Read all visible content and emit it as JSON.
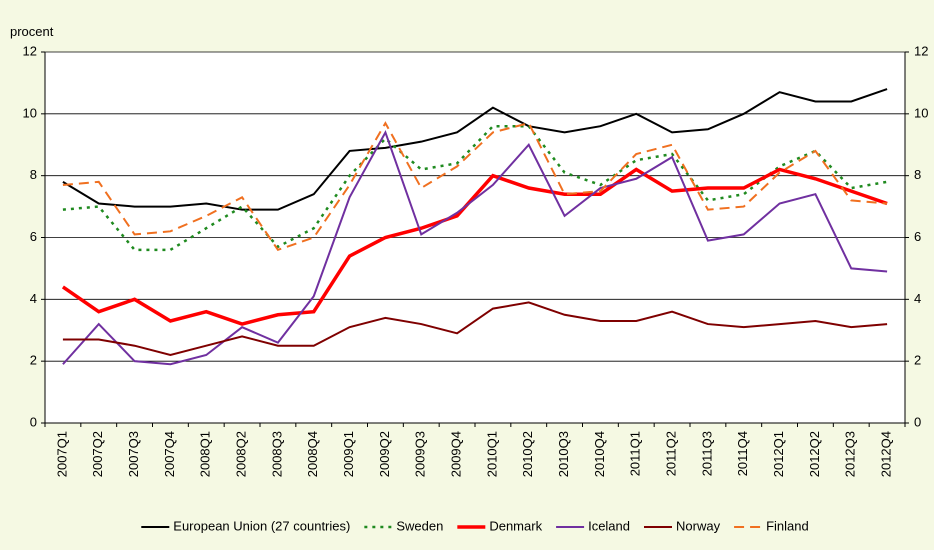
{
  "chart_data": {
    "type": "line",
    "y_label": "procent",
    "categories": [
      "2007Q1",
      "2007Q2",
      "2007Q3",
      "2007Q4",
      "2008Q1",
      "2008Q2",
      "2008Q3",
      "2008Q4",
      "2009Q1",
      "2009Q2",
      "2009Q3",
      "2009Q4",
      "2010Q1",
      "2010Q2",
      "2010Q3",
      "2010Q4",
      "2011Q1",
      "2011Q2",
      "2011Q3",
      "2011Q4",
      "2012Q1",
      "2012Q2",
      "2012Q3",
      "2012Q4"
    ],
    "ylim": [
      0,
      12
    ],
    "yticks": [
      0,
      2,
      4,
      6,
      8,
      10,
      12
    ],
    "y2lim": [
      0,
      12
    ],
    "y2ticks": [
      0,
      2,
      4,
      6,
      8,
      10,
      12
    ],
    "grid": true,
    "series": [
      {
        "name": "European Union (27 countries)",
        "color": "#000000",
        "dash": "solid",
        "width": 2,
        "values": [
          7.8,
          7.1,
          7.0,
          7.0,
          7.1,
          6.9,
          6.9,
          7.4,
          8.8,
          8.9,
          9.1,
          9.4,
          10.2,
          9.6,
          9.4,
          9.6,
          10.0,
          9.4,
          9.5,
          10.0,
          10.7,
          10.4,
          10.4,
          10.8
        ]
      },
      {
        "name": "Sweden",
        "color": "#1f8a1f",
        "dash": "dotted",
        "width": 2.5,
        "values": [
          6.9,
          7.0,
          5.6,
          5.6,
          6.3,
          7.0,
          5.7,
          6.3,
          8.0,
          9.2,
          8.2,
          8.4,
          9.6,
          9.6,
          8.1,
          7.7,
          8.5,
          8.7,
          7.2,
          7.4,
          8.3,
          8.8,
          7.6,
          7.8
        ]
      },
      {
        "name": "Denmark",
        "color": "#ff0000",
        "dash": "solid",
        "width": 3.5,
        "values": [
          4.4,
          3.6,
          4.0,
          3.3,
          3.6,
          3.2,
          3.5,
          3.6,
          5.4,
          6.0,
          6.3,
          6.7,
          8.0,
          7.6,
          7.4,
          7.4,
          8.2,
          7.5,
          7.6,
          7.6,
          8.2,
          7.9,
          7.5,
          7.1
        ]
      },
      {
        "name": "Iceland",
        "color": "#7030a0",
        "dash": "solid",
        "width": 2,
        "values": [
          1.9,
          3.2,
          2.0,
          1.9,
          2.2,
          3.1,
          2.6,
          4.1,
          7.3,
          9.4,
          6.1,
          6.8,
          7.7,
          9.0,
          6.7,
          7.6,
          7.9,
          8.6,
          5.9,
          6.1,
          7.1,
          7.4,
          5.0,
          4.9
        ]
      },
      {
        "name": "Norway",
        "color": "#7f0000",
        "dash": "solid",
        "width": 2,
        "values": [
          2.7,
          2.7,
          2.5,
          2.2,
          2.5,
          2.8,
          2.5,
          2.5,
          3.1,
          3.4,
          3.2,
          2.9,
          3.7,
          3.9,
          3.5,
          3.3,
          3.3,
          3.6,
          3.2,
          3.1,
          3.2,
          3.3,
          3.1,
          3.2
        ]
      },
      {
        "name": "Finland",
        "color": "#f07020",
        "dash": "dashed",
        "width": 2,
        "values": [
          7.7,
          7.8,
          6.1,
          6.2,
          6.7,
          7.3,
          5.6,
          6.0,
          7.7,
          9.7,
          7.6,
          8.3,
          9.4,
          9.7,
          7.4,
          7.5,
          8.7,
          9.0,
          6.9,
          7.0,
          8.1,
          8.8,
          7.2,
          7.1
        ]
      }
    ]
  }
}
